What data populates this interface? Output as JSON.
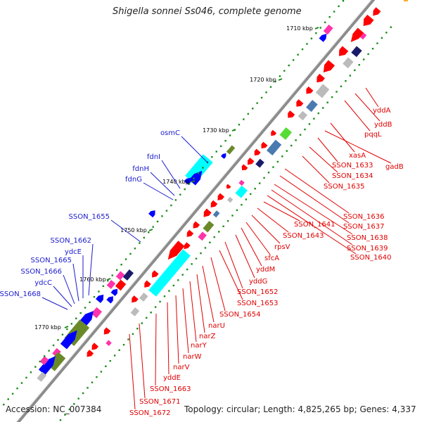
{
  "title": "Shigella sonnei Ss046, complete genome",
  "footer": {
    "accession": "Accession: NC_007384",
    "topology": "Topology: circular; Length: 4,825,265 bp; Genes: 4,337"
  },
  "colors": {
    "backbone": "#8c8c8c",
    "gene_red": "#ff0000",
    "label_red": "#e00000",
    "label_blue": "#1a1acc",
    "gene_blue": "#0000ff",
    "cyan": "#00ffff",
    "magenta": "#ff33aa",
    "green": "#55dd33",
    "olive": "#6a8a2a",
    "steel": "#4a7ab0",
    "navy": "#1a1a6a",
    "gray": "#bbbbbb",
    "tick_green": "#1a8c1a"
  },
  "ticks": [
    "1710 kbp",
    "1720 kbp",
    "1730 kbp",
    "1740 kbp",
    "1750 kbp",
    "1760 kbp",
    "1770 kbp"
  ],
  "labels_right": [
    "yddA",
    "yddB",
    "pqqL",
    "xasA",
    "gadB",
    "SSON_1633",
    "SSON_1634",
    "SSON_1635",
    "SSON_1636",
    "SSON_1637",
    "SSON_1638",
    "SSON_1639",
    "SSON_1640",
    "SSON_1641",
    "SSON_1643",
    "rpsV",
    "sfcA",
    "yddM",
    "yddG",
    "SSON_1652",
    "SSON_1653",
    "SSON_1654",
    "narU",
    "narZ",
    "narY",
    "narW",
    "narV",
    "yddE",
    "SSON_1663",
    "SSON_1671",
    "SSON_1672"
  ],
  "labels_left": [
    "osmC",
    "fdnI",
    "fdnH",
    "fdnG",
    "SSON_1655",
    "SSON_1662",
    "ydcE",
    "SSON_1665",
    "SSON_1666",
    "ydcC",
    "SSON_1668"
  ]
}
